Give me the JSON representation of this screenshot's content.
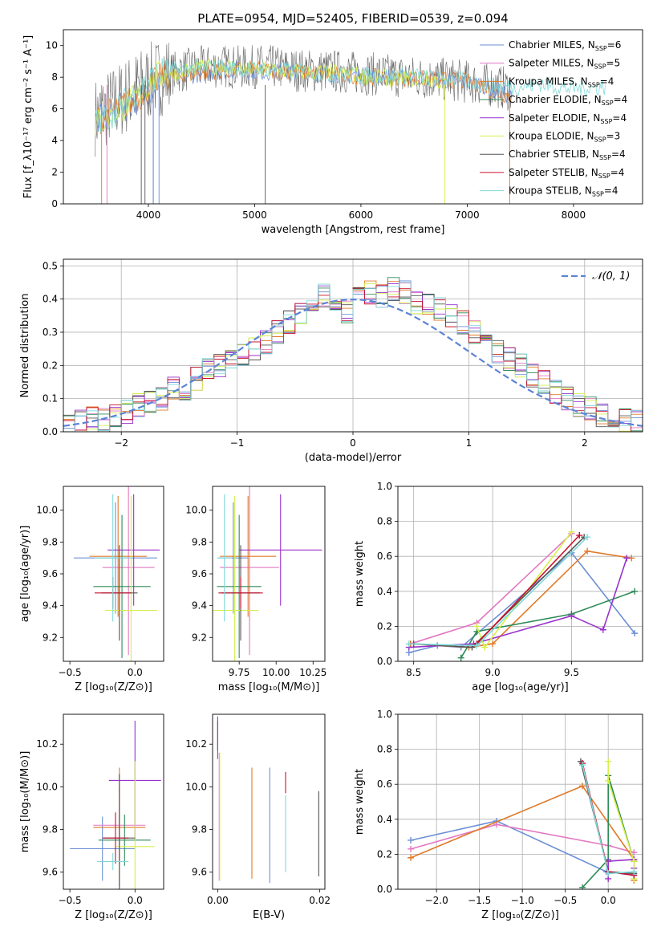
{
  "figure_title": "PLATE=0954, MJD=52405, FIBERID=0539, z=0.094",
  "series_colors": [
    "#6b8fd6",
    "#e377c2",
    "#e07a28",
    "#2e8b57",
    "#9932cc",
    "#d4f04c",
    "#555555",
    "#c8102e",
    "#7fd8d8"
  ],
  "chart_data": [
    {
      "type": "line",
      "title": "PLATE=0954, MJD=52405, FIBERID=0539, z=0.094",
      "xlabel": "wavelength [Angstrom, rest frame]",
      "ylabel": "Flux [f_λ10⁻¹⁷ erg cm⁻² s⁻¹ A⁻¹]",
      "xlim": [
        3200,
        8650
      ],
      "ylim": [
        0,
        11
      ],
      "xticks": [
        "4000",
        "5000",
        "6000",
        "7000",
        "8000"
      ],
      "yticks": [
        "0",
        "2",
        "4",
        "6",
        "8",
        "10"
      ],
      "grid": false,
      "legend_position": "top-right",
      "series": [
        {
          "name": "Chabrier MILES, N_SSP=6",
          "x": [
            3500,
            3700,
            3900,
            4100,
            4300,
            4500,
            4700,
            4900,
            5100,
            5300,
            5500,
            5700,
            5900,
            6100,
            6300,
            6500,
            6700,
            6900,
            7100,
            7300,
            7420
          ],
          "values": [
            5.1,
            5.9,
            6.6,
            7.8,
            8.0,
            8.2,
            8.4,
            8.5,
            8.3,
            8.4,
            8.3,
            8.2,
            8.2,
            8.0,
            8.0,
            7.9,
            7.9,
            7.7,
            7.6,
            7.1,
            6.7
          ]
        },
        {
          "name": "Salpeter MILES, N_SSP=5"
        },
        {
          "name": "Kroupa MILES, N_SSP=4",
          "x": [
            3500,
            3700,
            3900,
            4100,
            4300,
            4500,
            4700,
            4900,
            5100,
            5300,
            5500,
            5700,
            5900,
            6100,
            6300,
            6500,
            6700,
            6900,
            7100,
            7300,
            7420
          ],
          "values": [
            5.2,
            6.0,
            6.7,
            7.9,
            8.1,
            8.3,
            8.4,
            8.5,
            8.4,
            8.4,
            8.3,
            8.2,
            8.1,
            8.0,
            8.0,
            7.9,
            7.9,
            7.8,
            7.6,
            7.0,
            6.8
          ]
        },
        {
          "name": "Chabrier ELODIE, N_SSP=4"
        },
        {
          "name": "Salpeter ELODIE, N_SSP=4"
        },
        {
          "name": "Kroupa ELODIE, N_SSP=3",
          "x": [
            3500,
            3700,
            3900,
            4100,
            4300,
            4500,
            4700,
            4900,
            5100,
            5300,
            5500,
            5700,
            5900,
            6100,
            6300,
            6500,
            6700,
            6800
          ],
          "values": [
            5.0,
            5.8,
            6.8,
            8.1,
            8.3,
            8.6,
            8.7,
            8.5,
            8.4,
            8.4,
            8.3,
            8.3,
            8.2,
            8.0,
            7.9,
            7.9,
            7.8,
            7.6
          ]
        },
        {
          "name": "Chabrier STELIB, N_SSP=4",
          "x": [
            3500,
            3700,
            3900,
            4100,
            4300,
            4500,
            4700,
            4900,
            5100,
            5300,
            5500,
            5700,
            5900,
            6100,
            6300,
            6500,
            6700,
            6900,
            7100,
            7300,
            7420
          ],
          "values": [
            5.5,
            6.4,
            7.3,
            8.0,
            8.4,
            8.6,
            8.7,
            8.6,
            8.7,
            8.5,
            8.4,
            8.4,
            8.3,
            8.2,
            8.1,
            8.0,
            7.9,
            7.8,
            7.6,
            7.4,
            7.2
          ]
        },
        {
          "name": "Salpeter STELIB, N_SSP=4"
        },
        {
          "name": "Kroupa STELIB, N_SSP=4",
          "x": [
            3500,
            3700,
            3900,
            4100,
            4300,
            4500,
            4700,
            4900,
            5100,
            5300,
            5500,
            5700,
            5900,
            6100,
            6300,
            6500,
            6700,
            6900,
            7100,
            7300,
            7500,
            7700,
            7900,
            8100,
            8300
          ],
          "values": [
            5.1,
            5.9,
            7.2,
            8.3,
            8.5,
            8.6,
            8.6,
            8.5,
            8.5,
            8.4,
            8.3,
            8.2,
            8.1,
            8.1,
            8.1,
            8.1,
            7.9,
            7.9,
            7.6,
            7.4,
            7.4,
            7.6,
            7.3,
            7.3,
            7.4
          ]
        }
      ]
    },
    {
      "type": "bar",
      "xlabel": "(data-model)/error",
      "ylabel": "Normed distribution",
      "xlim": [
        -2.5,
        2.5
      ],
      "ylim": [
        0,
        0.52
      ],
      "xticks": [
        "−2",
        "−1",
        "0",
        "1",
        "2"
      ],
      "yticks": [
        "0.0",
        "0.1",
        "0.2",
        "0.3",
        "0.4",
        "0.5"
      ],
      "grid": true,
      "legend_position": "top-right",
      "bin_width": 0.1,
      "reference_curve": {
        "name": "𝒩(0, 1)",
        "mean": 0,
        "sigma": 1
      },
      "histogram_values": [
        0.02,
        0.03,
        0.04,
        0.035,
        0.05,
        0.06,
        0.08,
        0.09,
        0.1,
        0.13,
        0.13,
        0.16,
        0.19,
        0.2,
        0.21,
        0.23,
        0.25,
        0.27,
        0.3,
        0.33,
        0.36,
        0.4,
        0.41,
        0.38,
        0.36,
        0.4,
        0.42,
        0.41,
        0.43,
        0.42,
        0.39,
        0.38,
        0.37,
        0.35,
        0.33,
        0.3,
        0.27,
        0.24,
        0.22,
        0.2,
        0.17,
        0.15,
        0.12,
        0.1,
        0.08,
        0.07,
        0.05,
        0.04,
        0.035,
        0.03
      ]
    },
    {
      "type": "scatter",
      "xlabel": "Z [log₁₀(Z/Z⊙)]",
      "ylabel": "age  [log₁₀(age/yr)]",
      "xlim": [
        -0.55,
        0.22
      ],
      "ylim": [
        9.05,
        10.15
      ],
      "xticks": [
        "−0.5",
        "0.0"
      ],
      "yticks": [
        "9.2",
        "9.4",
        "9.6",
        "9.8",
        "10.0"
      ],
      "points": [
        {
          "x": -0.15,
          "y": 9.7,
          "xerr": 0.32,
          "yerr": 0.35
        },
        {
          "x": -0.05,
          "y": 9.64,
          "xerr": 0.2,
          "yerr": 0.55
        },
        {
          "x": -0.13,
          "y": 9.71,
          "xerr": 0.22,
          "yerr": 0.38
        },
        {
          "x": -0.1,
          "y": 9.52,
          "xerr": 0.22,
          "yerr": 0.45
        },
        {
          "x": -0.01,
          "y": 9.75,
          "xerr": 0.2,
          "yerr": 0.35
        },
        {
          "x": -0.03,
          "y": 9.37,
          "xerr": 0.2,
          "yerr": 0.72
        },
        {
          "x": -0.12,
          "y": 9.48,
          "xerr": 0.14,
          "yerr": 0.3
        },
        {
          "x": -0.17,
          "y": 9.48,
          "xerr": 0.14,
          "yerr": 0.1
        },
        {
          "x": -0.17,
          "y": 9.7,
          "xerr": 0.14,
          "yerr": 0.4
        }
      ]
    },
    {
      "type": "scatter",
      "xlabel": "mass [log₁₀(M/M⊙)]",
      "xlim": [
        9.57,
        10.33
      ],
      "ylim": [
        9.05,
        10.15
      ],
      "xticks": [
        "9.75",
        "10.00",
        "10.25"
      ],
      "yticks": [
        "9.2",
        "9.4",
        "9.6",
        "9.8",
        "10.0"
      ],
      "points": [
        {
          "x": 9.71,
          "y": 9.7,
          "xerr": 0.1,
          "yerr": 0.35
        },
        {
          "x": 9.82,
          "y": 9.64,
          "xerr": 0.2,
          "yerr": 0.55
        },
        {
          "x": 9.81,
          "y": 9.71,
          "xerr": 0.19,
          "yerr": 0.38
        },
        {
          "x": 9.75,
          "y": 9.52,
          "xerr": 0.15,
          "yerr": 0.45
        },
        {
          "x": 10.03,
          "y": 9.75,
          "xerr": 0.28,
          "yerr": 0.35
        },
        {
          "x": 9.72,
          "y": 9.37,
          "xerr": 0.16,
          "yerr": 0.72
        },
        {
          "x": 9.76,
          "y": 9.48,
          "xerr": 0.13,
          "yerr": 0.3
        },
        {
          "x": 9.76,
          "y": 9.48,
          "xerr": 0.15,
          "yerr": 0.1
        },
        {
          "x": 9.65,
          "y": 9.7,
          "xerr": 0.05,
          "yerr": 0.4
        }
      ]
    },
    {
      "type": "line",
      "xlabel": "age  [log₁₀(age/yr)]",
      "ylabel": "mass weight",
      "xlim": [
        8.4,
        9.95
      ],
      "ylim": [
        0,
        1.0
      ],
      "xticks": [
        "8.5",
        "9.0",
        "9.5"
      ],
      "yticks": [
        "0.0",
        "0.2",
        "0.4",
        "0.6",
        "0.8",
        "1.0"
      ],
      "grid": true,
      "series": [
        {
          "x": [
            8.47,
            8.65,
            8.8,
            9.5,
            9.9
          ],
          "values": [
            0.05,
            0.09,
            0.08,
            0.62,
            0.16
          ]
        },
        {
          "x": [
            8.48,
            8.9,
            9.5
          ],
          "values": [
            0.1,
            0.22,
            0.73
          ]
        },
        {
          "x": [
            8.48,
            8.85,
            9.0,
            9.6,
            9.88
          ],
          "values": [
            0.1,
            0.08,
            0.1,
            0.63,
            0.59
          ]
        },
        {
          "x": [
            8.8,
            8.9,
            9.5,
            9.9
          ],
          "values": [
            0.02,
            0.17,
            0.27,
            0.4
          ]
        },
        {
          "x": [
            8.47,
            8.88,
            9.5,
            9.7,
            9.85
          ],
          "values": [
            0.08,
            0.1,
            0.26,
            0.18,
            0.59
          ]
        },
        {
          "x": [
            8.9,
            8.95,
            9.5
          ],
          "values": [
            0.2,
            0.08,
            0.74
          ]
        },
        {
          "x": [
            8.5,
            8.87,
            9.58
          ],
          "values": [
            0.1,
            0.08,
            0.71
          ]
        },
        {
          "x": [
            8.9,
            9.55
          ],
          "values": [
            0.1,
            0.72
          ]
        },
        {
          "x": [
            8.47,
            8.9,
            9.6
          ],
          "values": [
            0.1,
            0.09,
            0.71
          ]
        }
      ]
    },
    {
      "type": "scatter",
      "xlabel": "Z [log₁₀(Z/Z⊙)]",
      "ylabel": "mass [log₁₀(M/M⊙)]",
      "xlim": [
        -0.55,
        0.22
      ],
      "ylim": [
        9.52,
        10.34
      ],
      "xticks": [
        "−0.5",
        "0.0"
      ],
      "yticks": [
        "9.6",
        "9.8",
        "10.0",
        "10.2"
      ],
      "points": [
        {
          "x": -0.25,
          "y": 9.71,
          "xerr": 0.25,
          "yerr": 0.15
        },
        {
          "x": -0.12,
          "y": 9.82,
          "xerr": 0.2,
          "yerr": 0.18
        },
        {
          "x": -0.12,
          "y": 9.81,
          "xerr": 0.2,
          "yerr": 0.28
        },
        {
          "x": -0.08,
          "y": 9.75,
          "xerr": 0.2,
          "yerr": 0.12
        },
        {
          "x": 0.0,
          "y": 10.03,
          "xerr": 0.2,
          "yerr": 0.28
        },
        {
          "x": 0.0,
          "y": 9.72,
          "xerr": 0.15,
          "yerr": 0.4
        },
        {
          "x": -0.12,
          "y": 9.76,
          "xerr": 0.12,
          "yerr": 0.3
        },
        {
          "x": -0.15,
          "y": 9.76,
          "xerr": 0.1,
          "yerr": 0.12
        },
        {
          "x": -0.17,
          "y": 9.65,
          "xerr": 0.12,
          "yerr": 0.04
        }
      ]
    },
    {
      "type": "scatter",
      "xlabel": "E(B-V)",
      "xlim": [
        -0.001,
        0.021
      ],
      "ylim": [
        9.52,
        10.34
      ],
      "xticks": [
        "0.00",
        "0.02"
      ],
      "yticks": [
        "9.6",
        "9.8",
        "10.0",
        "10.2"
      ],
      "points": [
        {
          "x": 0.0102,
          "y": 9.82,
          "yerr": 0.27
        },
        {
          "x": 0.0003,
          "y": 9.86,
          "yerr": 0.3
        },
        {
          "x": 0.0067,
          "y": 9.83,
          "yerr": 0.26
        },
        {
          "x": 0.0,
          "y": 10.22,
          "yerr": 0.09
        },
        {
          "x": 0.0,
          "y": 10.25,
          "yerr": 0.08
        },
        {
          "x": 0.0004,
          "y": 9.86,
          "yerr": 0.3
        },
        {
          "x": 0.0198,
          "y": 9.78,
          "yerr": 0.2
        },
        {
          "x": 0.0133,
          "y": 10.02,
          "yerr": 0.05
        },
        {
          "x": 0.0133,
          "y": 9.78,
          "yerr": 0.18
        }
      ]
    },
    {
      "type": "line",
      "xlabel": "Z [log₁₀(Z/Z⊙)]",
      "ylabel": "mass weight",
      "xlim": [
        -2.45,
        0.4
      ],
      "ylim": [
        0,
        1.0
      ],
      "xticks": [
        "−2.0",
        "−1.5",
        "−1.0",
        "−0.5",
        "0.0"
      ],
      "yticks": [
        "0.0",
        "0.2",
        "0.4",
        "0.6",
        "0.8",
        "1.0"
      ],
      "grid": true,
      "series": [
        {
          "x": [
            -2.3,
            -1.3,
            -0.02,
            0.3
          ],
          "values": [
            0.28,
            0.39,
            0.1,
            0.08
          ]
        },
        {
          "x": [
            -2.3,
            -1.3,
            0.0,
            0.3
          ],
          "values": [
            0.23,
            0.37,
            0.25,
            0.21
          ]
        },
        {
          "x": [
            -2.3,
            -0.3,
            0.3,
            0.3
          ],
          "values": [
            0.18,
            0.59,
            0.17,
            0.05
          ]
        },
        {
          "x": [
            -0.3,
            0.0,
            0.0,
            0.3
          ],
          "values": [
            0.01,
            0.17,
            0.65,
            0.16
          ]
        },
        {
          "x": [
            0.0,
            0.0,
            0.3,
            0.3
          ],
          "values": [
            0.06,
            0.16,
            0.17,
            0.12
          ]
        },
        {
          "x": [
            0.0,
            0.0,
            0.3,
            0.3
          ],
          "values": [
            0.73,
            0.62,
            0.16,
            0.06
          ]
        },
        {
          "x": [
            -0.32,
            0.0,
            0.3
          ],
          "values": [
            0.73,
            0.1,
            0.09
          ]
        },
        {
          "x": [
            -0.3,
            0.0,
            0.3
          ],
          "values": [
            0.72,
            0.1,
            0.08
          ]
        },
        {
          "x": [
            -0.3,
            0.0,
            0.3
          ],
          "values": [
            0.71,
            0.09,
            0.1
          ]
        }
      ]
    }
  ]
}
